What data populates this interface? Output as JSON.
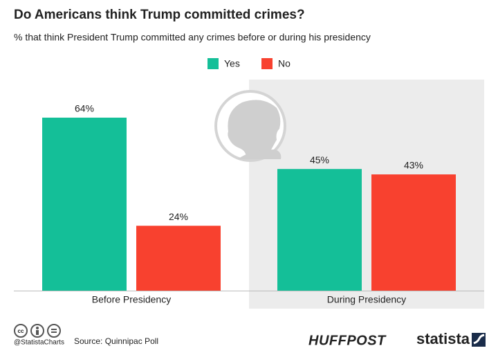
{
  "chart_data": {
    "type": "bar",
    "title": "Do Americans think Trump committed crimes?",
    "subtitle": "% that think President Trump committed any crimes before or during his presidency",
    "categories": [
      "Before Presidency",
      "During Presidency"
    ],
    "series": [
      {
        "name": "Yes",
        "color": "#14bf98",
        "values": [
          64,
          45
        ],
        "value_labels": [
          "64%",
          "45%"
        ]
      },
      {
        "name": "No",
        "color": "#f8412f",
        "values": [
          24,
          43
        ],
        "value_labels": [
          "24%",
          "43%"
        ]
      }
    ],
    "legend": "top"
  },
  "footer": {
    "handle": "@StatistaCharts",
    "source": "Source: Quinnipac Poll",
    "partner": "HUFFPOST",
    "brand": "statista"
  }
}
